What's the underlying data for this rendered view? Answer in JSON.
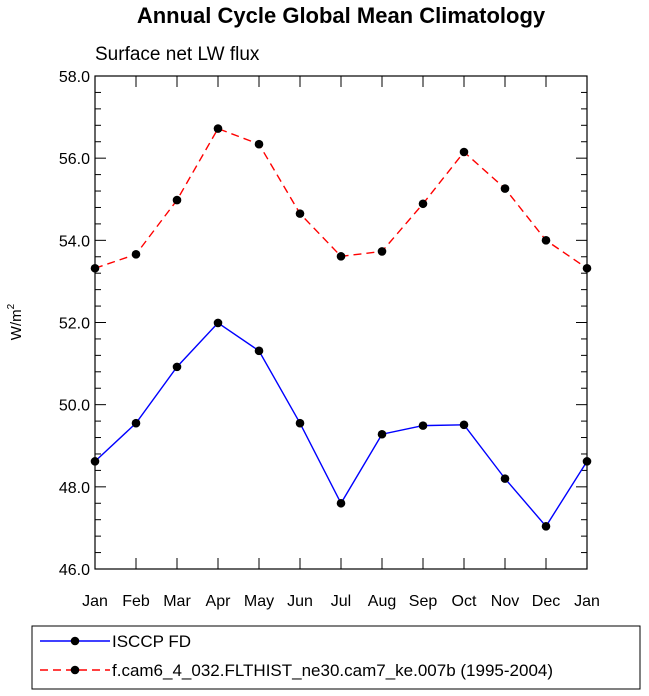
{
  "chart_data": {
    "type": "line",
    "title": "Annual Cycle Global Mean Climatology",
    "subtitle": "Surface net LW flux",
    "ylabel": "W/m",
    "ylabel_sup": "2",
    "ylim": [
      46.0,
      58.0
    ],
    "yticks": [
      "46.0",
      "48.0",
      "50.0",
      "52.0",
      "54.0",
      "56.0",
      "58.0"
    ],
    "categories": [
      "Jan",
      "Feb",
      "Mar",
      "Apr",
      "May",
      "Jun",
      "Jul",
      "Aug",
      "Sep",
      "Oct",
      "Nov",
      "Dec",
      "Jan"
    ],
    "series": [
      {
        "name": "ISCCP FD",
        "color": "#0000ff",
        "dash": "solid",
        "values": [
          48.62,
          49.55,
          50.92,
          51.99,
          51.31,
          49.55,
          47.6,
          49.28,
          49.49,
          49.51,
          48.2,
          47.04,
          48.62
        ]
      },
      {
        "name": "f.cam6_4_032.FLTHIST_ne30.cam7_ke.007b (1995-2004)",
        "color": "#ff0000",
        "dash": "dashed",
        "values": [
          53.32,
          53.66,
          54.98,
          56.72,
          56.34,
          54.65,
          53.61,
          53.73,
          54.89,
          56.15,
          55.26,
          54.0,
          53.32
        ]
      }
    ],
    "legend": "bottom"
  }
}
